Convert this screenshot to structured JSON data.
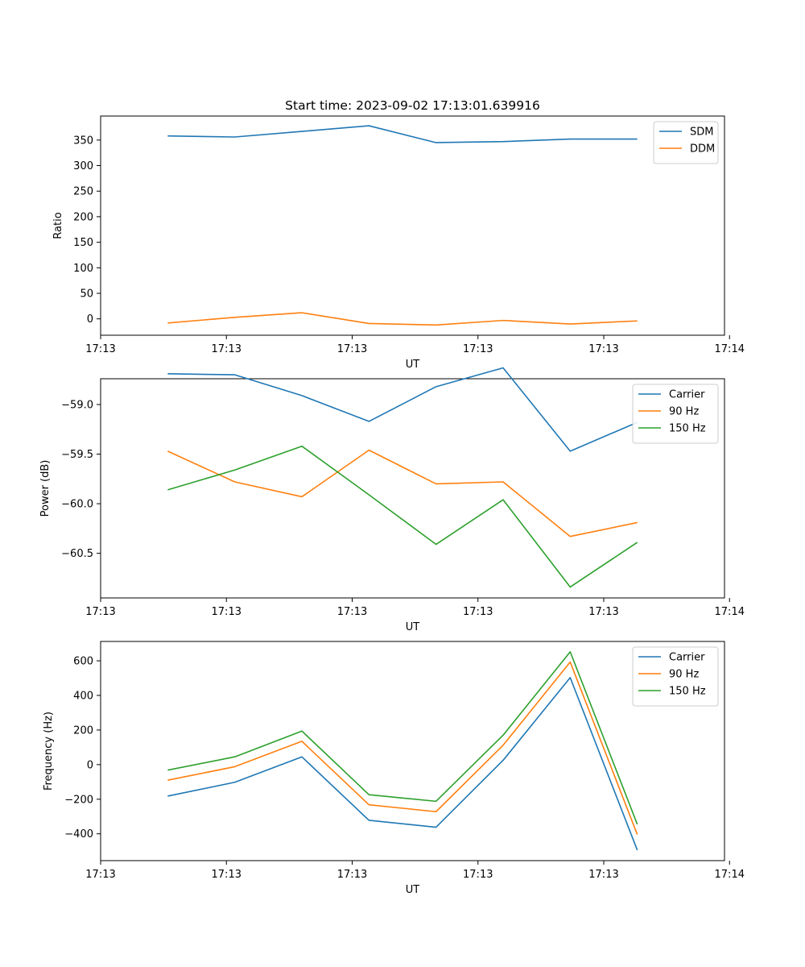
{
  "figure": {
    "title": "Start time: 2023-09-02 17:13:01.639916"
  },
  "colors": {
    "blue": "#1f77b4",
    "orange": "#ff7f0e",
    "green": "#2ca02c"
  },
  "chart_data": [
    {
      "type": "line",
      "title": "Start time: 2023-09-02 17:13:01.639916",
      "xlabel": "UT",
      "ylabel": "Ratio",
      "xlim": [
        0,
        9.3
      ],
      "ylim": [
        -32,
        397
      ],
      "x": [
        1,
        2,
        3,
        4,
        5,
        6,
        7,
        8
      ],
      "xticks": [
        {
          "pos": 0,
          "label": "17:13"
        },
        {
          "pos": 1.875,
          "label": "17:13"
        },
        {
          "pos": 3.75,
          "label": "17:13"
        },
        {
          "pos": 5.625,
          "label": "17:13"
        },
        {
          "pos": 7.5,
          "label": "17:13"
        },
        {
          "pos": 9.375,
          "label": "17:14"
        }
      ],
      "yticks": [
        0,
        50,
        100,
        150,
        200,
        250,
        300,
        350
      ],
      "legend": "top-right",
      "series": [
        {
          "name": "SDM",
          "color": "blue",
          "values": [
            358,
            356,
            367,
            378,
            345,
            347,
            352,
            352
          ]
        },
        {
          "name": "DDM",
          "color": "orange",
          "values": [
            -8,
            3,
            12,
            -9,
            -12,
            -3,
            -10,
            -4
          ]
        }
      ]
    },
    {
      "type": "line",
      "xlabel": "UT",
      "ylabel": "Power (dB)",
      "xlim": [
        0,
        9.3
      ],
      "ylim": [
        -60.95,
        -58.74
      ],
      "x": [
        1,
        2,
        3,
        4,
        5,
        6,
        7,
        8
      ],
      "xticks": [
        {
          "pos": 0,
          "label": "17:13"
        },
        {
          "pos": 1.875,
          "label": "17:13"
        },
        {
          "pos": 3.75,
          "label": "17:13"
        },
        {
          "pos": 5.625,
          "label": "17:13"
        },
        {
          "pos": 7.5,
          "label": "17:13"
        },
        {
          "pos": 9.375,
          "label": "17:14"
        }
      ],
      "yticks": [
        -59.0,
        -59.5,
        -60.0,
        -60.5
      ],
      "yticklabels": [
        "−59.0",
        "−59.5",
        "−60.0",
        "−60.5"
      ],
      "legend": "top-right",
      "series": [
        {
          "name": "Carrier",
          "color": "blue",
          "values": [
            -58.69,
            -58.7,
            -58.91,
            -59.17,
            -58.82,
            -58.63,
            -59.47,
            -59.18
          ]
        },
        {
          "name": "90 Hz",
          "color": "orange",
          "values": [
            -59.47,
            -59.78,
            -59.93,
            -59.46,
            -59.8,
            -59.78,
            -60.33,
            -60.19
          ]
        },
        {
          "name": "150 Hz",
          "color": "green",
          "values": [
            -59.86,
            -59.66,
            -59.42,
            -59.91,
            -60.41,
            -59.96,
            -60.84,
            -60.39
          ]
        }
      ]
    },
    {
      "type": "line",
      "xlabel": "UT",
      "ylabel": "Frequency (Hz)",
      "xlim": [
        0,
        9.3
      ],
      "ylim": [
        -555,
        712
      ],
      "x": [
        1,
        2,
        3,
        4,
        5,
        6,
        7,
        8
      ],
      "xticks": [
        {
          "pos": 0,
          "label": "17:13"
        },
        {
          "pos": 1.875,
          "label": "17:13"
        },
        {
          "pos": 3.75,
          "label": "17:13"
        },
        {
          "pos": 5.625,
          "label": "17:13"
        },
        {
          "pos": 7.5,
          "label": "17:13"
        },
        {
          "pos": 9.375,
          "label": "17:14"
        }
      ],
      "yticks": [
        600,
        400,
        200,
        0,
        -200,
        -400
      ],
      "yticklabels": [
        "600",
        "400",
        "200",
        "0",
        "−200",
        "−400"
      ],
      "legend": "top-right",
      "series": [
        {
          "name": "Carrier",
          "color": "blue",
          "values": [
            -182,
            -102,
            45,
            -322,
            -362,
            25,
            503,
            -494
          ]
        },
        {
          "name": "90 Hz",
          "color": "orange",
          "values": [
            -90,
            -12,
            135,
            -232,
            -272,
            112,
            593,
            -404
          ]
        },
        {
          "name": "150 Hz",
          "color": "green",
          "values": [
            -32,
            45,
            194,
            -174,
            -212,
            170,
            652,
            -345
          ]
        }
      ]
    }
  ]
}
